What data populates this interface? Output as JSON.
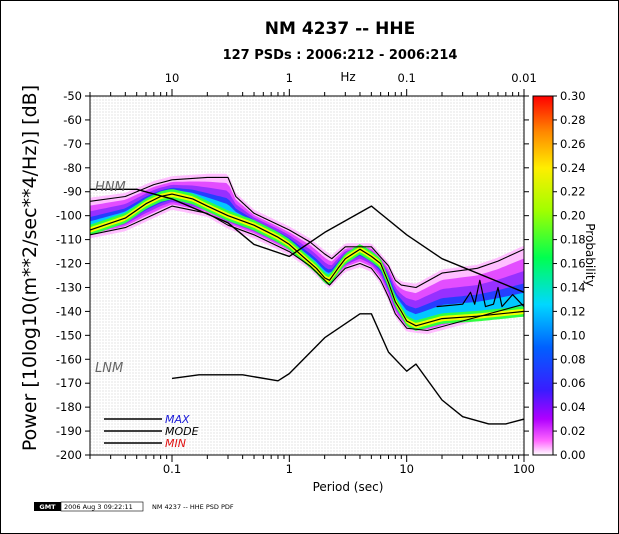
{
  "chart_data": {
    "type": "heatmap",
    "title": "NM 4237 -- HHE",
    "subtitle": "127 PSDs : 2006:212 - 2006:214",
    "xlabel": "Period (sec)",
    "ylabel": "Power [10log10(m**2/sec**4/Hz)] [dB]",
    "top_axis_label": "Hz",
    "colorbar_label": "Probability",
    "x_scale": "log",
    "xlim": [
      0.02,
      100
    ],
    "ylim": [
      -200,
      -50
    ],
    "x_ticks": [
      "0.1",
      "1",
      "10",
      "100"
    ],
    "top_ticks": [
      "10",
      "1",
      "0.1",
      "0.01"
    ],
    "y_ticks": [
      "-50",
      "-60",
      "-70",
      "-80",
      "-90",
      "-100",
      "-110",
      "-120",
      "-130",
      "-140",
      "-150",
      "-160",
      "-170",
      "-180",
      "-190",
      "-200"
    ],
    "colorbar_ticks": [
      "0.30",
      "0.28",
      "0.26",
      "0.24",
      "0.22",
      "0.20",
      "0.18",
      "0.16",
      "0.14",
      "0.12",
      "0.10",
      "0.08",
      "0.06",
      "0.04",
      "0.02",
      "0.00"
    ],
    "colorbar_range": [
      0,
      0.3
    ],
    "nhnm_label": "HNM",
    "nlnm_label": "LNM",
    "nhnm": [
      [
        0.02,
        -89
      ],
      [
        0.05,
        -89
      ],
      [
        0.1,
        -93
      ],
      [
        0.3,
        -103
      ],
      [
        0.5,
        -112
      ],
      [
        1,
        -117
      ],
      [
        2,
        -107
      ],
      [
        5,
        -96
      ],
      [
        10,
        -108
      ],
      [
        20,
        -118
      ],
      [
        100,
        -132
      ]
    ],
    "nlnm": [
      [
        0.1,
        -168
      ],
      [
        0.17,
        -166.5
      ],
      [
        0.4,
        -166.5
      ],
      [
        0.8,
        -169
      ],
      [
        1,
        -166
      ],
      [
        2,
        -151
      ],
      [
        4,
        -141
      ],
      [
        5,
        -141
      ],
      [
        7,
        -157
      ],
      [
        10,
        -165
      ],
      [
        12,
        -162
      ],
      [
        20,
        -177
      ],
      [
        30,
        -184
      ],
      [
        50,
        -187
      ],
      [
        70,
        -187
      ],
      [
        100,
        -185
      ]
    ],
    "mode": [
      [
        0.02,
        -106
      ],
      [
        0.04,
        -101
      ],
      [
        0.06,
        -95
      ],
      [
        0.08,
        -92
      ],
      [
        0.1,
        -91
      ],
      [
        0.15,
        -93
      ],
      [
        0.2,
        -96
      ],
      [
        0.3,
        -100
      ],
      [
        0.5,
        -104
      ],
      [
        0.8,
        -109
      ],
      [
        1,
        -112
      ],
      [
        1.3,
        -117
      ],
      [
        1.7,
        -122
      ],
      [
        2,
        -126
      ],
      [
        2.2,
        -127
      ],
      [
        2.6,
        -122
      ],
      [
        3,
        -118
      ],
      [
        4,
        -114
      ],
      [
        5,
        -117
      ],
      [
        6,
        -120
      ],
      [
        7,
        -128
      ],
      [
        8,
        -136
      ],
      [
        9,
        -140
      ],
      [
        10,
        -144
      ],
      [
        12,
        -146
      ],
      [
        20,
        -143
      ],
      [
        40,
        -142
      ],
      [
        100,
        -140
      ]
    ],
    "max": [
      [
        0.02,
        -94
      ],
      [
        0.04,
        -92
      ],
      [
        0.07,
        -87
      ],
      [
        0.1,
        -85
      ],
      [
        0.2,
        -84
      ],
      [
        0.3,
        -84
      ],
      [
        0.35,
        -92
      ],
      [
        0.5,
        -99
      ],
      [
        1,
        -106
      ],
      [
        1.5,
        -111
      ],
      [
        2,
        -116
      ],
      [
        2.3,
        -118
      ],
      [
        3,
        -113
      ],
      [
        5,
        -113
      ],
      [
        7,
        -121
      ],
      [
        8,
        -127
      ],
      [
        9,
        -129
      ],
      [
        12,
        -130
      ],
      [
        20,
        -124
      ],
      [
        40,
        -122
      ],
      [
        60,
        -119
      ],
      [
        100,
        -114
      ]
    ],
    "min": [
      [
        0.02,
        -108
      ],
      [
        0.04,
        -105
      ],
      [
        0.06,
        -101
      ],
      [
        0.1,
        -96
      ],
      [
        0.2,
        -99
      ],
      [
        0.3,
        -104
      ],
      [
        0.5,
        -108
      ],
      [
        1,
        -115
      ],
      [
        1.5,
        -121
      ],
      [
        2,
        -127
      ],
      [
        2.2,
        -129
      ],
      [
        2.5,
        -126
      ],
      [
        3,
        -122
      ],
      [
        4,
        -120
      ],
      [
        5,
        -122
      ],
      [
        6,
        -127
      ],
      [
        7,
        -134
      ],
      [
        8,
        -141
      ],
      [
        10,
        -147
      ],
      [
        15,
        -148
      ],
      [
        30,
        -144
      ],
      [
        100,
        -137
      ]
    ],
    "mode_tail": [
      [
        18,
        -138
      ],
      [
        30,
        -137
      ],
      [
        35,
        -132
      ],
      [
        38,
        -137
      ],
      [
        42,
        -127
      ],
      [
        47,
        -138
      ],
      [
        55,
        -137
      ],
      [
        60,
        -130
      ],
      [
        65,
        -138
      ],
      [
        80,
        -133
      ],
      [
        100,
        -138
      ]
    ],
    "legend": {
      "max": {
        "label": "MAX",
        "color": "#1a1ad8"
      },
      "mode": {
        "label": "MODE",
        "color": "#000000"
      },
      "min": {
        "label": "MIN",
        "color": "#e01010"
      }
    }
  },
  "footer": {
    "logo": "GMT",
    "timestamp": "2006 Aug 3 09:22:11",
    "caption": "NM 4237 -- HHE PSD PDF"
  }
}
